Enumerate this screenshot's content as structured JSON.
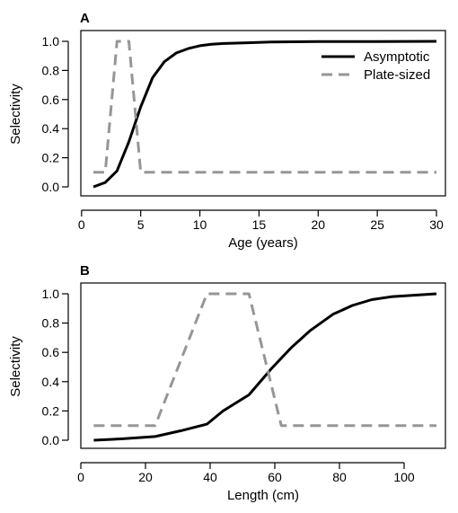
{
  "chart_data": [
    {
      "type": "line",
      "panel_label": "A",
      "xlabel": "Age (years)",
      "ylabel": "Selectivity",
      "xlim": [
        0,
        30
      ],
      "ylim": [
        0,
        1
      ],
      "xticks": [
        0,
        5,
        10,
        15,
        20,
        25,
        30
      ],
      "xtick_labels": [
        "0",
        "5",
        "10",
        "15",
        "20",
        "25",
        "30"
      ],
      "yticks": [
        0,
        0.2,
        0.4,
        0.6,
        0.8,
        1.0
      ],
      "ytick_labels": [
        "0.0",
        "0.2",
        "0.4",
        "0.6",
        "0.8",
        "1.0"
      ],
      "legend": "top-right",
      "grid": false,
      "series": [
        {
          "name": "Asymptotic",
          "style": "solid",
          "color": "#000000",
          "x": [
            1,
            2,
            3,
            4,
            5,
            6,
            7,
            8,
            9,
            10,
            11,
            12,
            14,
            16,
            18,
            20,
            25,
            30
          ],
          "y": [
            0.0,
            0.03,
            0.11,
            0.31,
            0.55,
            0.75,
            0.86,
            0.92,
            0.95,
            0.97,
            0.98,
            0.985,
            0.99,
            0.995,
            0.997,
            0.998,
            0.999,
            1.0
          ]
        },
        {
          "name": "Plate-sized",
          "style": "dashed",
          "color": "#969696",
          "x": [
            1,
            2,
            3,
            4,
            5,
            30
          ],
          "y": [
            0.1,
            0.1,
            1.0,
            1.0,
            0.1,
            0.1
          ]
        }
      ]
    },
    {
      "type": "line",
      "panel_label": "B",
      "xlabel": "Length (cm)",
      "ylabel": "Selectivity",
      "xlim": [
        0,
        110
      ],
      "ylim": [
        0,
        1
      ],
      "xticks": [
        0,
        20,
        40,
        60,
        80,
        100
      ],
      "xtick_labels": [
        "0",
        "20",
        "40",
        "60",
        "80",
        "100"
      ],
      "yticks": [
        0,
        0.2,
        0.4,
        0.6,
        0.8,
        1.0
      ],
      "ytick_labels": [
        "0.0",
        "0.2",
        "0.4",
        "0.6",
        "0.8",
        "1.0"
      ],
      "grid": false,
      "series": [
        {
          "name": "Asymptotic",
          "style": "solid",
          "color": "#000000",
          "x": [
            4,
            13,
            23,
            31,
            39,
            44,
            52,
            59,
            65,
            71,
            78,
            84,
            90,
            96,
            103,
            110
          ],
          "y": [
            0.0,
            0.01,
            0.025,
            0.065,
            0.11,
            0.2,
            0.31,
            0.49,
            0.63,
            0.75,
            0.86,
            0.92,
            0.96,
            0.98,
            0.99,
            1.0
          ]
        },
        {
          "name": "Plate-sized",
          "style": "dashed",
          "color": "#969696",
          "x": [
            4,
            23,
            39,
            52,
            62,
            110
          ],
          "y": [
            0.1,
            0.1,
            1.0,
            1.0,
            0.1,
            0.1
          ]
        }
      ]
    }
  ]
}
